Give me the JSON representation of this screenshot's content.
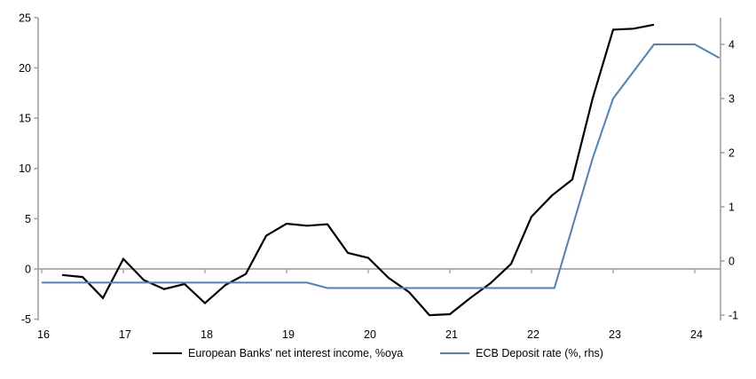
{
  "chart_data": {
    "type": "line",
    "title": "",
    "x_axis": {
      "tick_labels": [
        "16",
        "17",
        "18",
        "19",
        "20",
        "21",
        "22",
        "23",
        "24"
      ],
      "tick_values": [
        16,
        17,
        18,
        19,
        20,
        21,
        22,
        23,
        24
      ],
      "range": [
        16,
        24.35
      ]
    },
    "left_axis": {
      "tick_labels": [
        "25",
        "20",
        "15",
        "10",
        "5",
        "0",
        "-5"
      ],
      "tick_values": [
        25,
        20,
        15,
        10,
        5,
        0,
        -5
      ],
      "range": [
        -5,
        25
      ]
    },
    "right_axis": {
      "tick_labels": [
        "4",
        "3",
        "2",
        "1",
        "0",
        "-1"
      ],
      "tick_values": [
        4,
        3,
        2,
        1,
        0,
        -1
      ],
      "range": [
        -1.1,
        4.5
      ]
    },
    "grid": "horizontal zero line only, with year tick marks on it",
    "legend_position": "bottom-center",
    "series": [
      {
        "name": "European Banks' net interest income, %oya",
        "axis": "left",
        "color": "#000000",
        "points": [
          [
            16.25,
            -0.6
          ],
          [
            16.5,
            -0.8
          ],
          [
            16.75,
            -2.9
          ],
          [
            17.0,
            1.0
          ],
          [
            17.25,
            -1.1
          ],
          [
            17.5,
            -2.0
          ],
          [
            17.75,
            -1.5
          ],
          [
            18.0,
            -3.4
          ],
          [
            18.25,
            -1.6
          ],
          [
            18.5,
            -0.5
          ],
          [
            18.75,
            3.3
          ],
          [
            19.0,
            4.5
          ],
          [
            19.25,
            4.3
          ],
          [
            19.5,
            4.45
          ],
          [
            19.75,
            1.6
          ],
          [
            20.0,
            1.1
          ],
          [
            20.25,
            -0.9
          ],
          [
            20.5,
            -2.3
          ],
          [
            20.75,
            -4.6
          ],
          [
            21.0,
            -4.5
          ],
          [
            21.25,
            -2.9
          ],
          [
            21.5,
            -1.4
          ],
          [
            21.75,
            0.5
          ],
          [
            22.0,
            5.2
          ],
          [
            22.25,
            7.3
          ],
          [
            22.5,
            8.9
          ],
          [
            22.75,
            17.0
          ],
          [
            23.0,
            23.8
          ],
          [
            23.25,
            23.9
          ],
          [
            23.5,
            24.3
          ]
        ]
      },
      {
        "name": "ECB Deposit rate (%, rhs)",
        "axis": "right",
        "color": "#4f81bd",
        "points": [
          [
            16.0,
            -0.4
          ],
          [
            19.25,
            -0.4
          ],
          [
            19.5,
            -0.5
          ],
          [
            22.28,
            -0.5
          ],
          [
            22.75,
            1.9
          ],
          [
            23.0,
            3.0
          ],
          [
            23.25,
            3.5
          ],
          [
            23.5,
            4.0
          ],
          [
            24.0,
            4.0
          ],
          [
            24.3,
            3.75
          ]
        ]
      }
    ],
    "colors": {
      "axis_line": "#a6a6a6",
      "zero_gridline": "#a6a6a6",
      "text": "#000000",
      "background": "#ffffff"
    }
  }
}
